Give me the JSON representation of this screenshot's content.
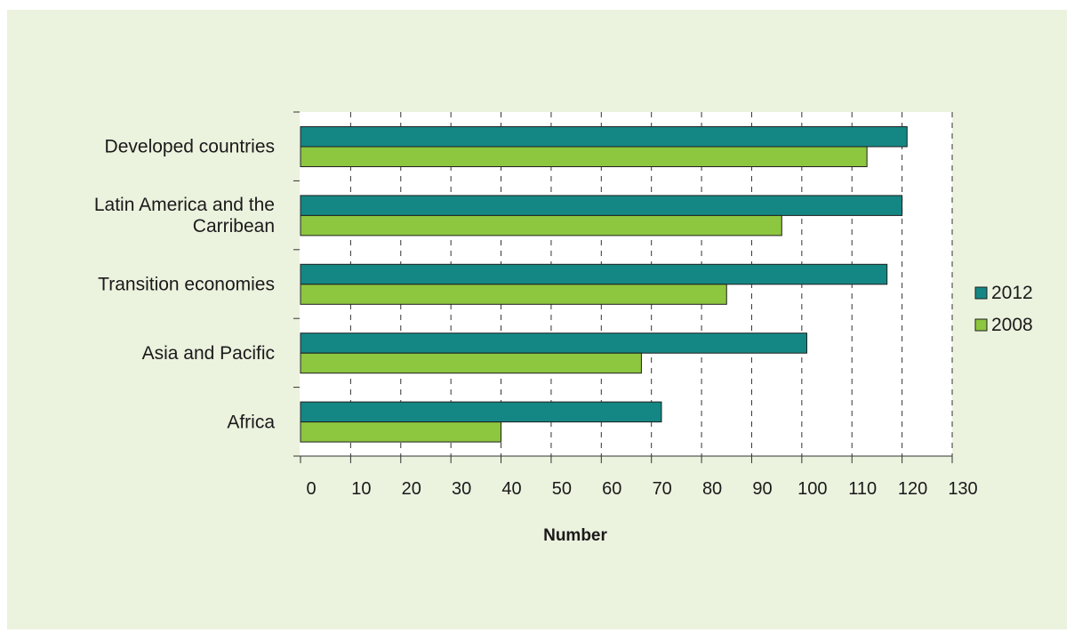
{
  "chart_data": {
    "type": "bar",
    "orientation": "horizontal",
    "categories": [
      [
        "Developed countries"
      ],
      [
        "Latin America and the",
        "Carribean"
      ],
      [
        "Transition economies"
      ],
      [
        "Asia and Pacific"
      ],
      [
        "Africa"
      ]
    ],
    "series": [
      {
        "name": "2012",
        "color": "#148784",
        "values": [
          121,
          120,
          117,
          101,
          72
        ]
      },
      {
        "name": "2008",
        "color": "#8dc63f",
        "values": [
          113,
          96,
          85,
          68,
          40
        ]
      }
    ],
    "xlabel": "Number",
    "xlim": [
      0,
      130
    ],
    "xticks": [
      0,
      10,
      20,
      30,
      40,
      50,
      60,
      70,
      80,
      90,
      100,
      110,
      120,
      130
    ],
    "grid": "vertical dashed",
    "legend_position": "right"
  }
}
